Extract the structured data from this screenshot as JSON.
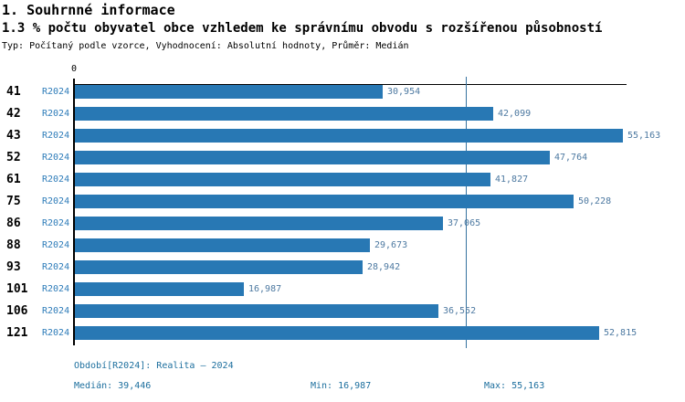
{
  "header": {
    "title": "1. Souhrnné informace",
    "subtitle": "1.3 % počtu obyvatel obce vzhledem ke správnímu obvodu s rozšířenou působností",
    "meta": "Typ: Počítaný podle vzorce, Vyhodnocení: Absolutní hodnoty, Průměr: Medián"
  },
  "chart_data": {
    "type": "bar",
    "orientation": "horizontal",
    "title": "1. Souhrnné informace",
    "xlabel": "",
    "ylabel": "",
    "axis": {
      "zero_label": "0",
      "min": 0,
      "max": 55163
    },
    "series_label": "R2024",
    "categories": [
      "41",
      "42",
      "43",
      "52",
      "61",
      "75",
      "86",
      "88",
      "93",
      "101",
      "106",
      "121"
    ],
    "values": [
      30954,
      42099,
      55163,
      47764,
      41827,
      50228,
      37065,
      29673,
      28942,
      16987,
      36552,
      52815
    ],
    "value_labels": [
      "30,954",
      "42,099",
      "55,163",
      "47,764",
      "41,827",
      "50,228",
      "37,065",
      "29,673",
      "28,942",
      "16,987",
      "36,552",
      "52,815"
    ],
    "median_value": 39446,
    "grid": "off",
    "legend_position": "bottom"
  },
  "footer": {
    "period": "Období[R2024]: Realita – 2024",
    "median": "Medián: 39,446",
    "min": "Min: 16,987",
    "max": "Max: 55,163"
  },
  "colors": {
    "bar": "#2878b4",
    "series_label": "#2e7cb9",
    "value_label": "#4d79a1",
    "median_line": "#35729f",
    "footer_text": "#1d6f9e",
    "axis": "#000000"
  }
}
